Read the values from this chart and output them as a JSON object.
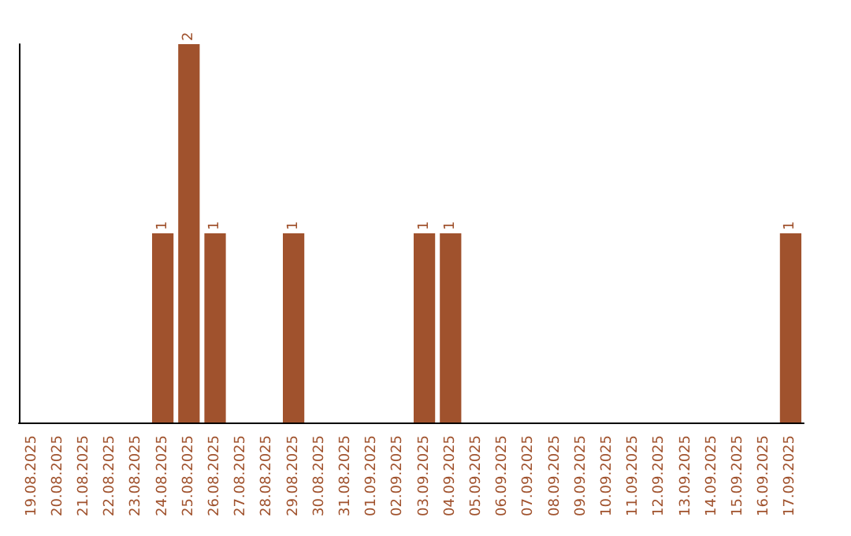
{
  "chart_data": {
    "type": "bar",
    "categories": [
      "19.08.2025",
      "20.08.2025",
      "21.08.2025",
      "22.08.2025",
      "23.08.2025",
      "24.08.2025",
      "25.08.2025",
      "26.08.2025",
      "27.08.2025",
      "28.08.2025",
      "29.08.2025",
      "30.08.2025",
      "31.08.2025",
      "01.09.2025",
      "02.09.2025",
      "03.09.2025",
      "04.09.2025",
      "05.09.2025",
      "06.09.2025",
      "07.09.2025",
      "08.09.2025",
      "09.09.2025",
      "10.09.2025",
      "11.09.2025",
      "12.09.2025",
      "13.09.2025",
      "14.09.2025",
      "15.09.2025",
      "16.09.2025",
      "17.09.2025"
    ],
    "values": [
      0,
      0,
      0,
      0,
      0,
      1,
      2,
      1,
      0,
      0,
      1,
      0,
      0,
      0,
      0,
      1,
      1,
      0,
      0,
      0,
      0,
      0,
      0,
      0,
      0,
      0,
      0,
      0,
      0,
      1
    ],
    "value_labels": [
      null,
      null,
      null,
      null,
      null,
      "1",
      "2",
      "1",
      null,
      null,
      "1",
      null,
      null,
      null,
      null,
      "1",
      "1",
      null,
      null,
      null,
      null,
      null,
      null,
      null,
      null,
      null,
      null,
      null,
      null,
      "1"
    ],
    "color": "#a0522d",
    "grid": false,
    "tick_labels": "x"
  }
}
